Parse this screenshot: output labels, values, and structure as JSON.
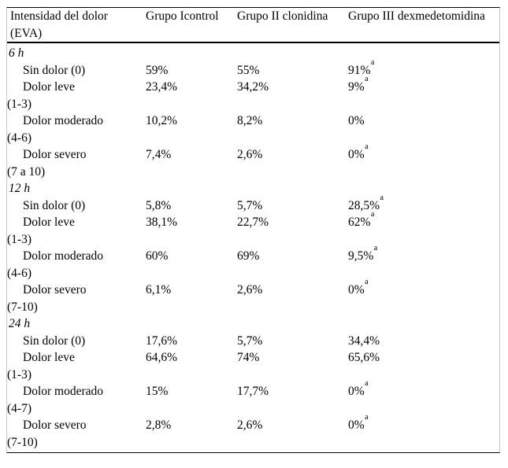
{
  "colors": {
    "background": "#ffffff",
    "rule_color": "#000000",
    "side_border_color": "#c8c8c8",
    "text_color": "#000000"
  },
  "table": {
    "header": {
      "col1": [
        "Intensidad del dolor",
        "(EVA)"
      ],
      "cols": [
        "Grupo Icontrol",
        "Grupo II clonidina",
        "Grupo III dexmedetomidina"
      ]
    },
    "sections": [
      {
        "time": "6 h",
        "rows": [
          {
            "label1": "Sin dolor (0)",
            "label2": "",
            "v1": "59%",
            "s1": "",
            "v2": "55%",
            "s2": "",
            "v3": "91%",
            "s3": "a"
          },
          {
            "label1": "Dolor leve",
            "label2": "(1-3)",
            "v1": "23,4%",
            "s1": "",
            "v2": "34,2%",
            "s2": "",
            "v3": "9%",
            "s3": "a"
          },
          {
            "label1": "Dolor moderado",
            "label2": "(4-6)",
            "v1": "10,2%",
            "s1": "",
            "v2": "8,2%",
            "s2": "",
            "v3": "0%",
            "s3": ""
          },
          {
            "label1": "Dolor severo",
            "label2": "(7 a 10)",
            "v1": "7,4%",
            "s1": "",
            "v2": "2,6%",
            "s2": "",
            "v3": "0%",
            "s3": "a"
          }
        ]
      },
      {
        "time": "12 h",
        "rows": [
          {
            "label1": "Sin dolor (0)",
            "label2": "",
            "v1": "5,8%",
            "s1": "",
            "v2": "5,7%",
            "s2": "",
            "v3": "28,5%",
            "s3": "a"
          },
          {
            "label1": "Dolor leve",
            "label2": "(1-3)",
            "v1": "38,1%",
            "s1": "",
            "v2": "22,7%",
            "s2": "",
            "v3": "62%",
            "s3": "a"
          },
          {
            "label1": "Dolor moderado",
            "label2": "(4-6)",
            "v1": "60%",
            "s1": "",
            "v2": "69%",
            "s2": "",
            "v3": "9,5%",
            "s3": "a"
          },
          {
            "label1": "Dolor severo",
            "label2": "(7-10)",
            "v1": "6,1%",
            "s1": "",
            "v2": "2,6%",
            "s2": "",
            "v3": "0%",
            "s3": "a"
          }
        ]
      },
      {
        "time": "24 h",
        "rows": [
          {
            "label1": "Sin dolor (0)",
            "label2": "",
            "v1": "17,6%",
            "s1": "",
            "v2": "5,7%",
            "s2": "",
            "v3": "34,4%",
            "s3": ""
          },
          {
            "label1": "Dolor leve",
            "label2": "(1-3)",
            "v1": "64,6%",
            "s1": "",
            "v2": "74%",
            "s2": "",
            "v3": "65,6%",
            "s3": ""
          },
          {
            "label1": "Dolor moderado",
            "label2": "(4-7)",
            "v1": "15%",
            "s1": "",
            "v2": "17,7%",
            "s2": "",
            "v3": "0%",
            "s3": "a"
          },
          {
            "label1": "Dolor severo",
            "label2": "(7-10)",
            "v1": "2,8%",
            "s1": "",
            "v2": "2,6%",
            "s2": "",
            "v3": "0%",
            "s3": "a"
          }
        ]
      }
    ]
  }
}
